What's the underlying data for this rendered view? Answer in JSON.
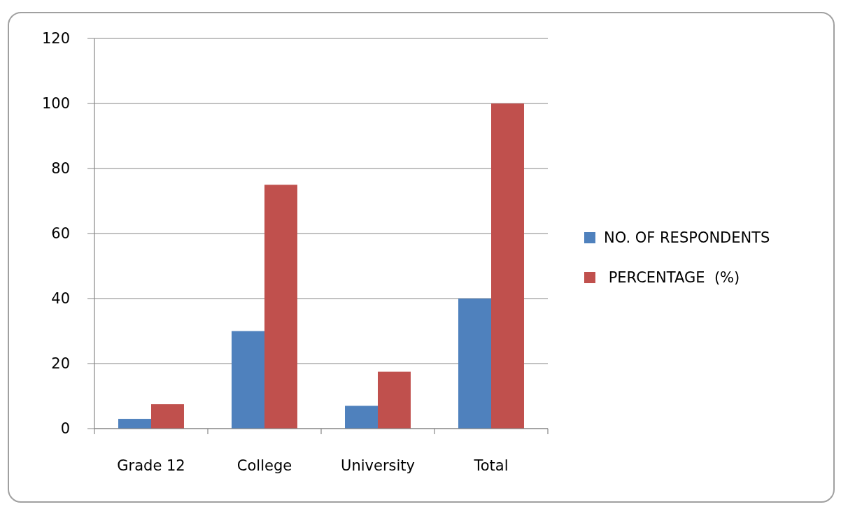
{
  "chart_data": {
    "type": "bar",
    "categories": [
      "Grade 12",
      "College",
      "University",
      "Total"
    ],
    "series": [
      {
        "name": "NO. OF RESPONDENTS",
        "color": "#4f81bd",
        "values": [
          3,
          30,
          7,
          40
        ]
      },
      {
        "name": " PERCENTAGE  (%)",
        "color": "#c0504d",
        "values": [
          7.5,
          75,
          17.5,
          100
        ]
      }
    ],
    "ylim": [
      0,
      120
    ],
    "yticks": [
      0,
      20,
      40,
      60,
      80,
      100,
      120
    ],
    "grid": "y",
    "legend": "right"
  }
}
